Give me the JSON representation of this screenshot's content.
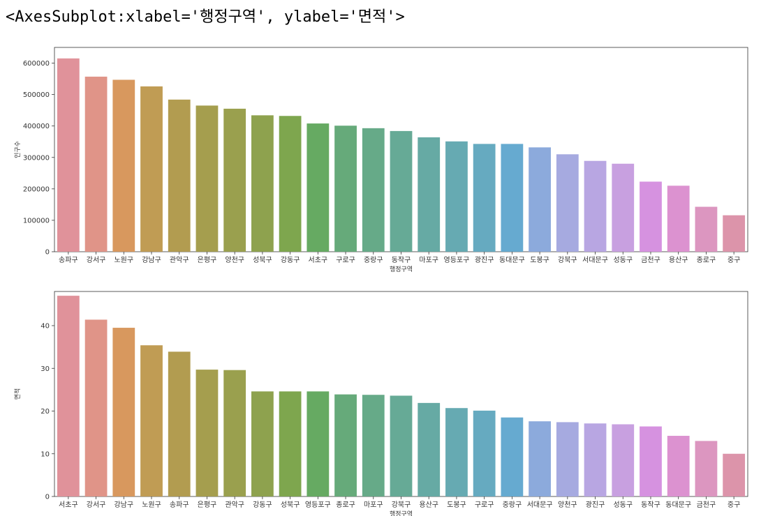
{
  "repr_text": "<AxesSubplot:xlabel='행정구역', ylabel='면적'>",
  "chart_data": [
    {
      "type": "bar",
      "xlabel": "행정구역",
      "ylabel": "인구수",
      "ylim": [
        0,
        650000
      ],
      "yticks": [
        0,
        100000,
        200000,
        300000,
        400000,
        500000,
        600000
      ],
      "grid": false,
      "categories": [
        "송파구",
        "강서구",
        "노원구",
        "강남구",
        "관악구",
        "은평구",
        "양천구",
        "성북구",
        "강동구",
        "서초구",
        "구로구",
        "중랑구",
        "동작구",
        "마포구",
        "영등포구",
        "광진구",
        "동대문구",
        "도봉구",
        "강북구",
        "서대문구",
        "성동구",
        "금천구",
        "용산구",
        "종로구",
        "중구"
      ],
      "values": [
        615000,
        557000,
        547000,
        526000,
        484000,
        465000,
        455000,
        434000,
        432000,
        408000,
        401000,
        393000,
        384000,
        364000,
        351000,
        343000,
        343000,
        332000,
        310000,
        289000,
        280000,
        223000,
        210000,
        143000,
        116000
      ]
    },
    {
      "type": "bar",
      "xlabel": "행정구역",
      "ylabel": "면적",
      "ylim": [
        0,
        48
      ],
      "yticks": [
        0,
        10,
        20,
        30,
        40
      ],
      "grid": false,
      "categories": [
        "서초구",
        "강서구",
        "강남구",
        "노원구",
        "송파구",
        "은평구",
        "관악구",
        "강동구",
        "성북구",
        "영등포구",
        "종로구",
        "마포구",
        "강북구",
        "용산구",
        "도봉구",
        "구로구",
        "중랑구",
        "서대문구",
        "양천구",
        "광진구",
        "성동구",
        "동작구",
        "동대문구",
        "금천구",
        "중구"
      ],
      "values": [
        47.0,
        41.4,
        39.5,
        35.4,
        33.9,
        29.7,
        29.6,
        24.6,
        24.6,
        24.6,
        23.9,
        23.8,
        23.6,
        21.9,
        20.7,
        20.1,
        18.5,
        17.6,
        17.4,
        17.1,
        16.9,
        16.4,
        14.2,
        13.0,
        10.0
      ]
    }
  ],
  "palette": [
    "#e0929a",
    "#e09488",
    "#d8985e",
    "#c09c54",
    "#b29c50",
    "#a59e4e",
    "#9aa04e",
    "#8ea24e",
    "#7ea64e",
    "#66aa62",
    "#66aa7a",
    "#66aa88",
    "#66aa96",
    "#66aaa4",
    "#66aab2",
    "#66aac0",
    "#66aad0",
    "#8caadc",
    "#a6aae0",
    "#b8a6e2",
    "#c8a0e0",
    "#d692e0",
    "#dc92d0",
    "#dc96c0",
    "#dc94aa"
  ]
}
